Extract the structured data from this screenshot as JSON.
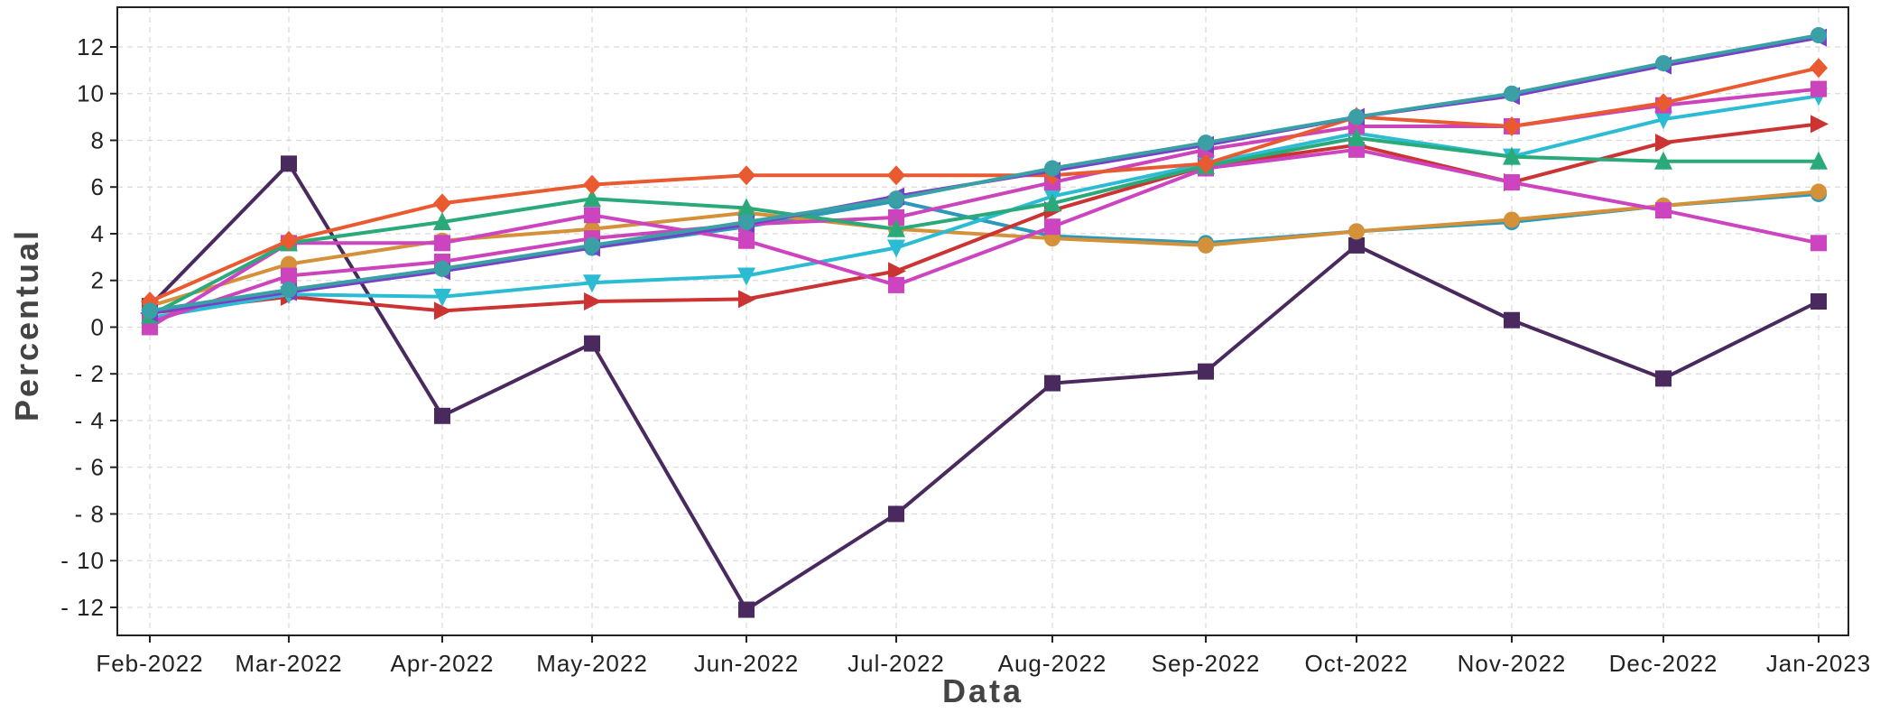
{
  "chart_data": {
    "type": "line",
    "xlabel": "Data",
    "ylabel": "Percentual",
    "categories": [
      "Feb-2022",
      "Mar-2022",
      "Apr-2022",
      "May-2022",
      "Jun-2022",
      "Jul-2022",
      "Aug-2022",
      "Sep-2022",
      "Oct-2022",
      "Nov-2022",
      "Dec-2022",
      "Jan-2023"
    ],
    "yticks": [
      12,
      10,
      8,
      6,
      4,
      2,
      0,
      -2,
      -4,
      -6,
      -8,
      -10,
      -12
    ],
    "ytick_labels": [
      "12",
      "10",
      "8",
      "6",
      "4",
      "2",
      "0",
      "- 2",
      "- 4",
      "- 6",
      "- 8",
      "- 10",
      "- 12"
    ],
    "ylim": [
      -13.2,
      13.7
    ],
    "grid": true,
    "series": [
      {
        "color": "#4a2a5e",
        "marker": "square",
        "values": [
          0.9,
          7.0,
          -3.8,
          -0.7,
          -12.1,
          -8.0,
          -2.4,
          -1.9,
          3.5,
          0.3,
          -2.2,
          1.1
        ]
      },
      {
        "color": "#2b9ab9",
        "marker": "circle",
        "values": [
          0.7,
          1.6,
          2.5,
          3.4,
          4.3,
          5.4,
          3.9,
          3.6,
          4.1,
          4.5,
          5.2,
          5.7
        ]
      },
      {
        "color": "#d4913a",
        "marker": "circle",
        "values": [
          0.9,
          2.7,
          3.7,
          4.2,
          4.9,
          4.2,
          3.8,
          3.5,
          4.1,
          4.6,
          5.2,
          5.8
        ]
      },
      {
        "color": "#cc3333",
        "marker": "triangle-right",
        "values": [
          0.6,
          1.3,
          0.7,
          1.1,
          1.2,
          2.4,
          5.0,
          6.9,
          7.8,
          6.2,
          7.9,
          8.7
        ]
      },
      {
        "color": "#2bbcd4",
        "marker": "triangle-down",
        "values": [
          0.4,
          1.4,
          1.3,
          1.9,
          2.2,
          3.4,
          5.6,
          7.0,
          8.3,
          7.3,
          8.9,
          9.9
        ]
      },
      {
        "color": "#cc44c0",
        "marker": "square",
        "values": [
          0.0,
          3.6,
          3.6,
          4.8,
          3.7,
          1.8,
          4.3,
          6.8,
          7.6,
          6.2,
          5.0,
          3.6
        ]
      },
      {
        "color": "#cc44bb",
        "marker": "square",
        "values": [
          0.2,
          2.2,
          2.8,
          3.8,
          4.4,
          4.7,
          6.2,
          7.6,
          8.6,
          8.6,
          9.5,
          10.2
        ]
      },
      {
        "color": "#2aaa7a",
        "marker": "triangle-up",
        "values": [
          0.5,
          3.6,
          4.5,
          5.5,
          5.1,
          4.2,
          5.3,
          6.9,
          8.1,
          7.3,
          7.1,
          7.1
        ]
      },
      {
        "color": "#ea5a30",
        "marker": "diamond",
        "values": [
          1.1,
          3.7,
          5.3,
          6.1,
          6.5,
          6.5,
          6.5,
          7.0,
          9.0,
          8.6,
          9.6,
          11.1
        ]
      },
      {
        "color": "#7a3fc8",
        "marker": "triangle-left",
        "values": [
          0.6,
          1.5,
          2.4,
          3.4,
          4.4,
          5.6,
          6.7,
          7.8,
          9.0,
          9.9,
          11.2,
          12.4
        ]
      },
      {
        "color": "#3aa0a6",
        "marker": "circle",
        "values": [
          0.7,
          1.6,
          2.5,
          3.5,
          4.5,
          5.5,
          6.8,
          7.9,
          9.0,
          10.0,
          11.3,
          12.5
        ]
      }
    ]
  }
}
